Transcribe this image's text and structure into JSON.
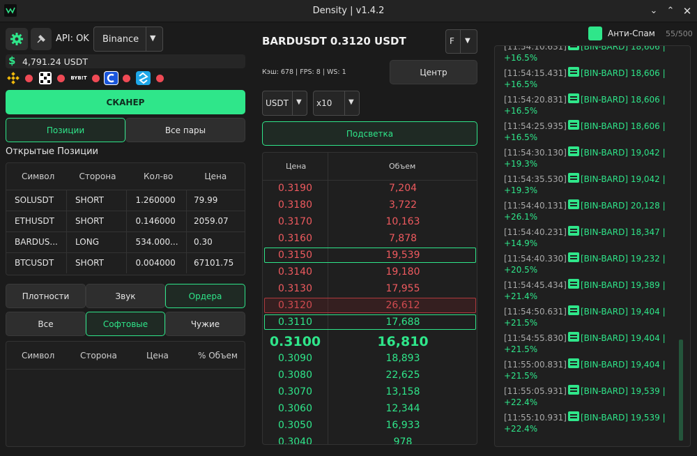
{
  "window": {
    "title": "Density  |  v1.4.2"
  },
  "top": {
    "api_status": "API: OK",
    "exchange": "Binance",
    "balance": "4,791.24 USDT",
    "bybit_label": "BYB!T"
  },
  "scanner_label": "СКАНЕР",
  "tabs1": [
    "Позиции",
    "Все пары"
  ],
  "positions": {
    "title": "Открытые Позиции",
    "headers": [
      "Символ",
      "Сторона",
      "Кол-во",
      "Цена"
    ],
    "rows": [
      [
        "SOLUSDT",
        "SHORT",
        "1.260000",
        "79.99"
      ],
      [
        "ETHUSDT",
        "SHORT",
        "0.146000",
        "2059.07"
      ],
      [
        "BARDUS...",
        "LONG",
        "534.000...",
        "0.30"
      ],
      [
        "BTCUSDT",
        "SHORT",
        "0.004000",
        "67101.75"
      ]
    ]
  },
  "tabs2": [
    "Плотности",
    "Звук",
    "Ордера"
  ],
  "tabs3": [
    "Все",
    "Софтовые",
    "Чужие"
  ],
  "orders": {
    "headers": [
      "Символ",
      "Сторона",
      "Цена",
      "% Объем"
    ]
  },
  "middle": {
    "symbol_title": "BARDUSDT 0.3120 USDT",
    "f_select": "F",
    "stats": "Кэш: 678 | FPS: 8 | WS: 1",
    "center_label": "Центр",
    "quote_select": "USDT",
    "leverage_select": "x10",
    "highlight_label": "Подсветка",
    "book_headers": [
      "Цена",
      "Объем"
    ],
    "book": [
      {
        "price": "0.3190",
        "vol": "7,204",
        "side": "ask"
      },
      {
        "price": "0.3180",
        "vol": "3,722",
        "side": "ask"
      },
      {
        "price": "0.3170",
        "vol": "10,163",
        "side": "ask"
      },
      {
        "price": "0.3160",
        "vol": "7,878",
        "side": "ask"
      },
      {
        "price": "0.3150",
        "vol": "19,539",
        "side": "ask",
        "mark": "green"
      },
      {
        "price": "0.3140",
        "vol": "19,180",
        "side": "ask"
      },
      {
        "price": "0.3130",
        "vol": "17,955",
        "side": "ask"
      },
      {
        "price": "0.3120",
        "vol": "26,612",
        "side": "ask",
        "mark": "red"
      },
      {
        "price": "0.3110",
        "vol": "17,688",
        "side": "bid",
        "mark": "green"
      },
      {
        "price": "0.3100",
        "vol": "16,810",
        "side": "bid",
        "big": true
      },
      {
        "price": "0.3090",
        "vol": "18,893",
        "side": "bid"
      },
      {
        "price": "0.3080",
        "vol": "22,625",
        "side": "bid"
      },
      {
        "price": "0.3070",
        "vol": "13,158",
        "side": "bid"
      },
      {
        "price": "0.3060",
        "vol": "12,344",
        "side": "bid"
      },
      {
        "price": "0.3050",
        "vol": "16,933",
        "side": "bid"
      },
      {
        "price": "0.3040",
        "vol": "978",
        "side": "bid"
      }
    ]
  },
  "right": {
    "antispam_label": "Анти-Спам",
    "antispam_count": "55/500",
    "log": [
      {
        "ts": "[11:54:10.631]",
        "msg": "[BIN-BARD] 18,606 |",
        "pct": "+16.5%"
      },
      {
        "ts": "[11:54:15.431]",
        "msg": "[BIN-BARD] 18,606 |",
        "pct": "+16.5%"
      },
      {
        "ts": "[11:54:20.831]",
        "msg": "[BIN-BARD] 18,606 |",
        "pct": "+16.5%"
      },
      {
        "ts": "[11:54:25.935]",
        "msg": "[BIN-BARD] 18,606 |",
        "pct": "+16.5%"
      },
      {
        "ts": "[11:54:30.130]",
        "msg": "[BIN-BARD] 19,042 |",
        "pct": "+19.3%"
      },
      {
        "ts": "[11:54:35.530]",
        "msg": "[BIN-BARD] 19,042 |",
        "pct": "+19.3%"
      },
      {
        "ts": "[11:54:40.131]",
        "msg": "[BIN-BARD] 20,128 |",
        "pct": "+26.1%"
      },
      {
        "ts": "[11:54:40.231]",
        "msg": "[BIN-BARD] 18,347 |",
        "pct": "+14.9%"
      },
      {
        "ts": "[11:54:40.330]",
        "msg": "[BIN-BARD] 19,232 |",
        "pct": "+20.5%"
      },
      {
        "ts": "[11:54:45.434]",
        "msg": "[BIN-BARD] 19,389 |",
        "pct": "+21.4%"
      },
      {
        "ts": "[11:54:50.631]",
        "msg": "[BIN-BARD] 19,404 |",
        "pct": "+21.5%"
      },
      {
        "ts": "[11:54:55.830]",
        "msg": "[BIN-BARD] 19,404 |",
        "pct": "+21.5%"
      },
      {
        "ts": "[11:55:00.831]",
        "msg": "[BIN-BARD] 19,404 |",
        "pct": "+21.5%"
      },
      {
        "ts": "[11:55:05.931]",
        "msg": "[BIN-BARD] 19,539 |",
        "pct": "+22.4%"
      },
      {
        "ts": "[11:55:10.931]",
        "msg": "[BIN-BARD] 19,539 |",
        "pct": "+22.4%"
      }
    ]
  },
  "colors": {
    "accent": "#2fe68a",
    "ask": "#ef5a5f",
    "bid": "#2fe68a",
    "background": "#1b1b1b"
  },
  "icons": [
    "gear-icon",
    "pick-icon",
    "dollar-icon",
    "binance-icon",
    "okx-icon",
    "bybit-icon",
    "exchange-c-icon",
    "exchange-s-icon",
    "book-icon",
    "chevron-down-icon",
    "minimize-icon",
    "maximize-icon",
    "close-icon"
  ]
}
